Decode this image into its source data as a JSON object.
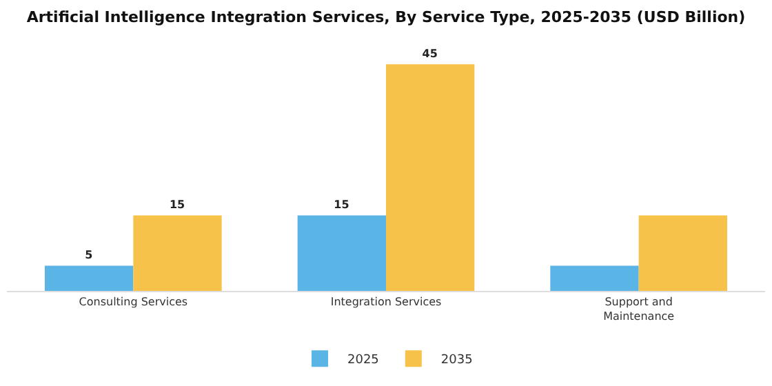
{
  "chart_data": {
    "type": "bar",
    "title": "Artificial Intelligence Integration Services, By Service Type, 2025-2035 (USD Billion)",
    "categories": [
      "Consulting Services",
      "Integration Services",
      "Support and Maintenance"
    ],
    "series": [
      {
        "name": "2025",
        "color": "#5ab4e5",
        "values": [
          5,
          15,
          5
        ],
        "value_labels": [
          "5",
          "15",
          null
        ]
      },
      {
        "name": "2035",
        "color": "#f7c24a",
        "values": [
          15,
          45,
          15
        ],
        "value_labels": [
          "15",
          "45",
          null
        ]
      }
    ],
    "tick_labels": "x",
    "grid": false,
    "legend": "bottom"
  }
}
